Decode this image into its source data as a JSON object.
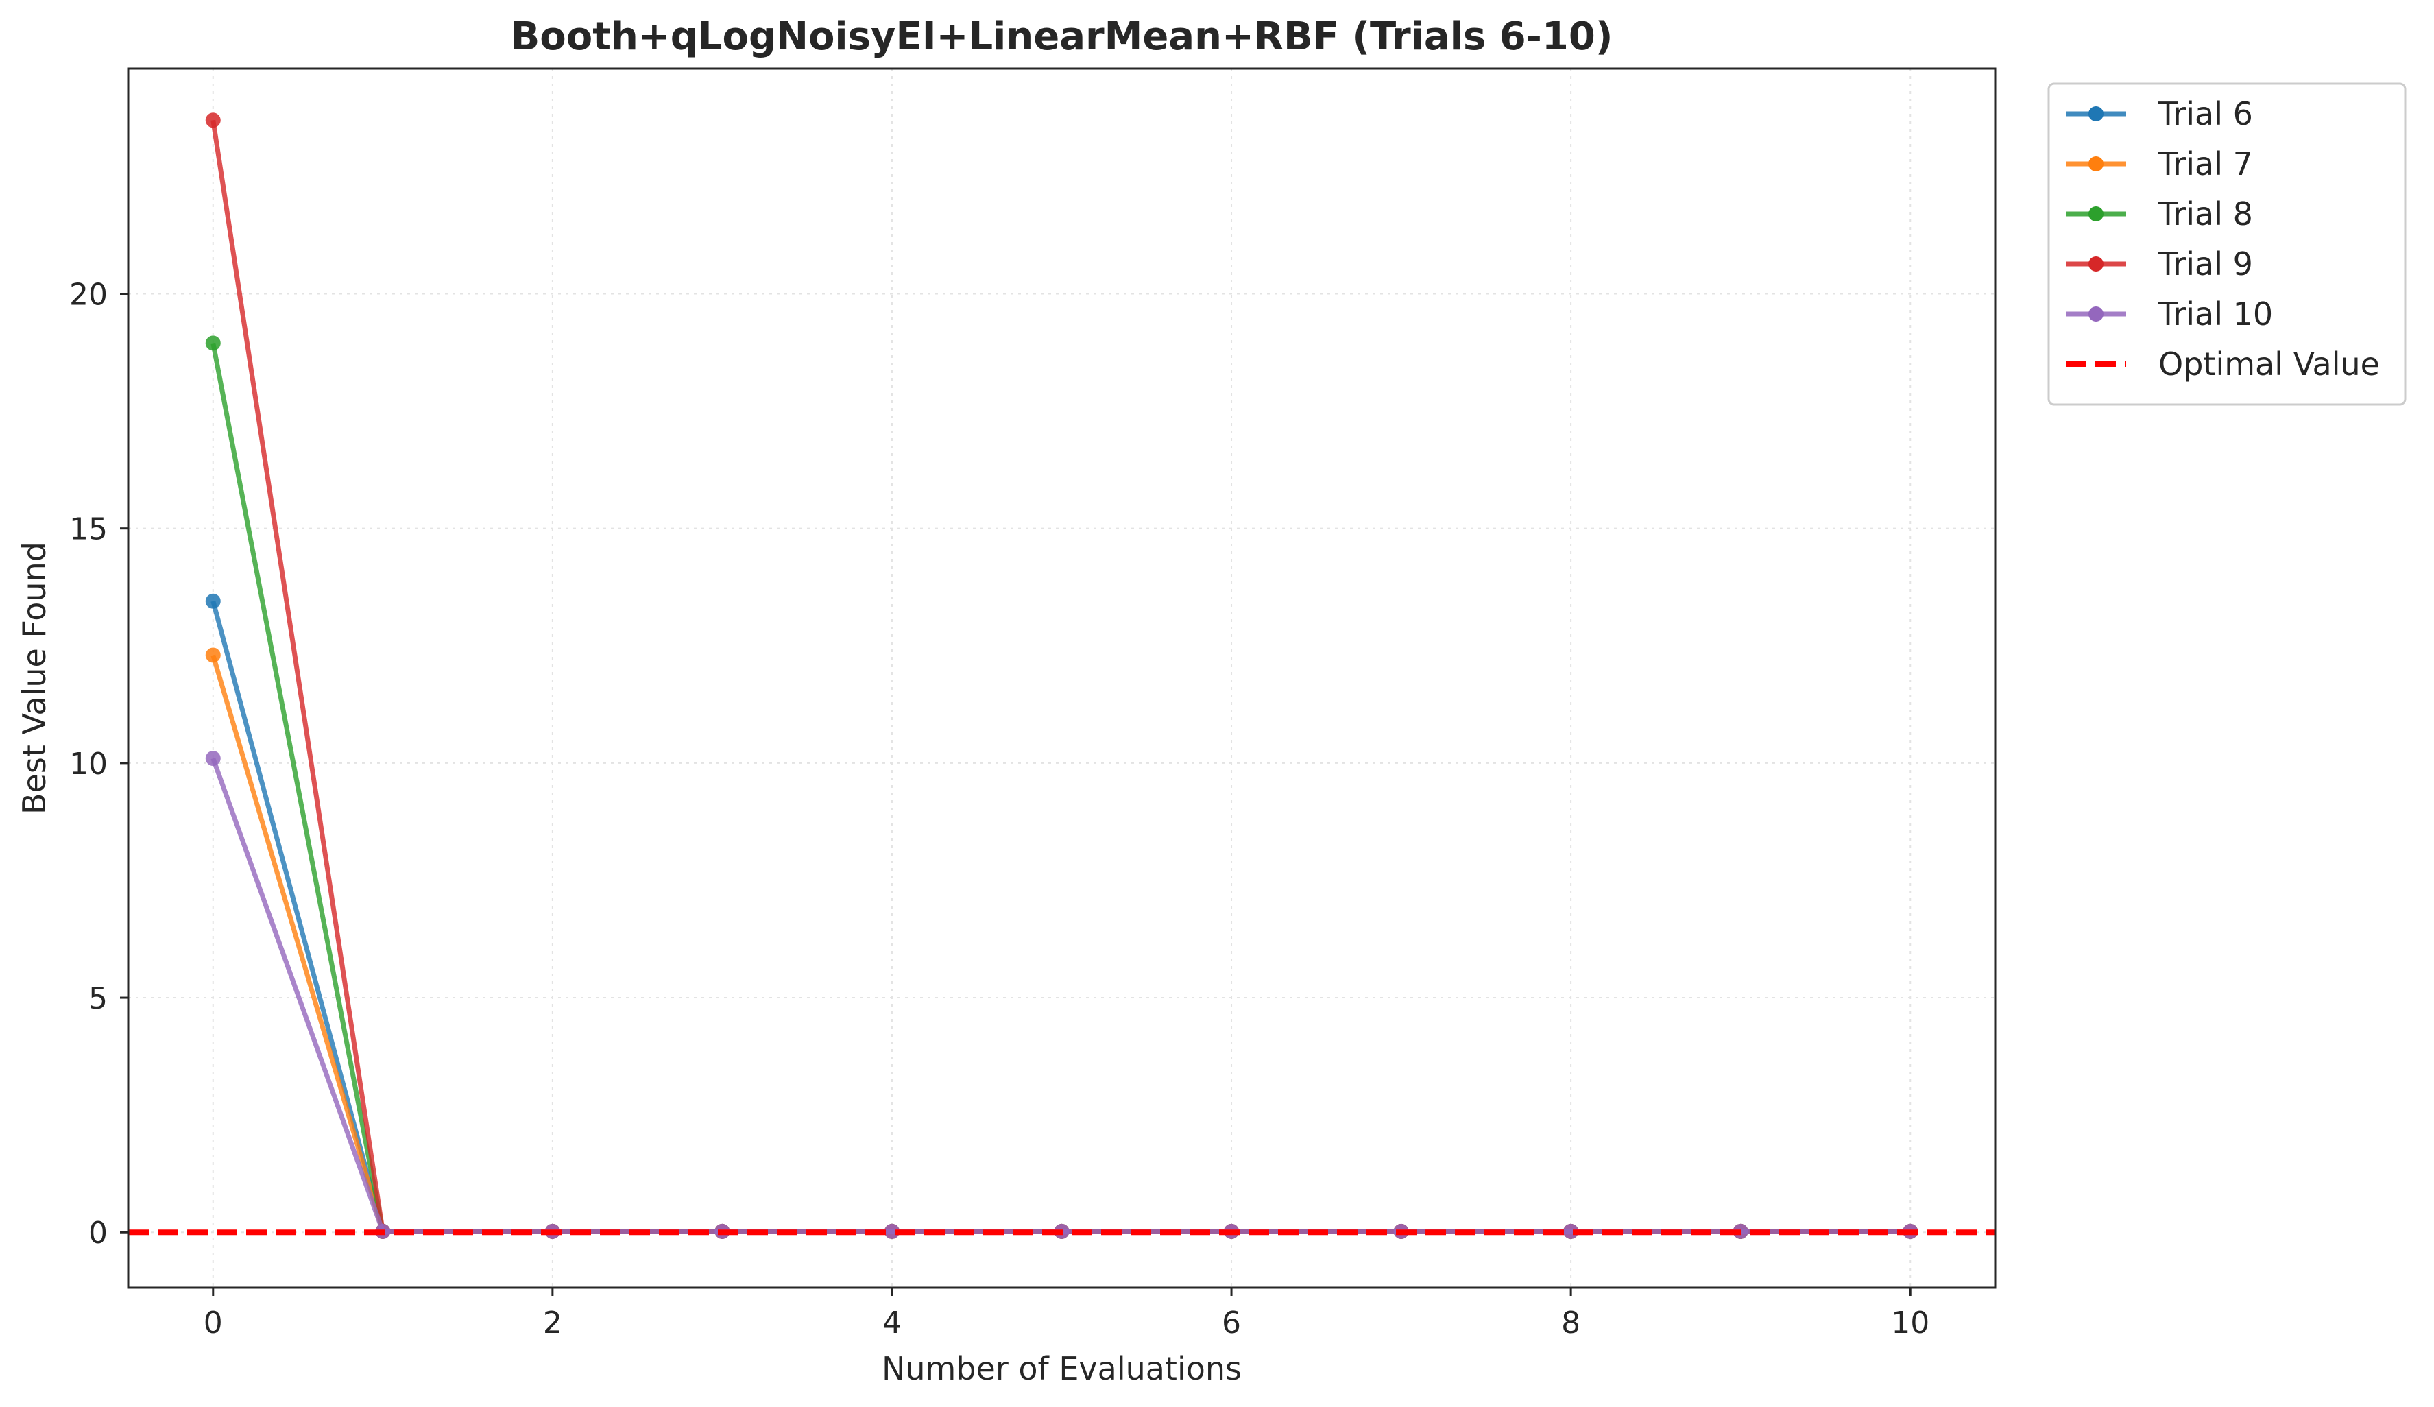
{
  "chart_data": {
    "type": "line",
    "title": "Booth+qLogNoisyEI+LinearMean+RBF (Trials 6-10)",
    "xlabel": "Number of Evaluations",
    "ylabel": "Best Value Found",
    "xlim": [
      -0.5,
      10.5
    ],
    "ylim": [
      -1.18,
      24.8
    ],
    "xticks": [
      0,
      2,
      4,
      6,
      8,
      10
    ],
    "yticks": [
      0,
      5,
      10,
      15,
      20
    ],
    "grid": true,
    "legend_position": "outside-top-right",
    "x": [
      0,
      1,
      2,
      3,
      4,
      5,
      6,
      7,
      8,
      9,
      10
    ],
    "series": [
      {
        "name": "Trial 6",
        "color": "#1f77b4",
        "values": [
          13.45,
          0.02,
          0.02,
          0.02,
          0.02,
          0.02,
          0.02,
          0.02,
          0.02,
          0.02,
          0.02
        ]
      },
      {
        "name": "Trial 7",
        "color": "#ff7f0e",
        "values": [
          12.3,
          0.02,
          0.02,
          0.02,
          0.02,
          0.02,
          0.02,
          0.02,
          0.02,
          0.02,
          0.02
        ]
      },
      {
        "name": "Trial 8",
        "color": "#2ca02c",
        "values": [
          18.95,
          0.02,
          0.02,
          0.02,
          0.02,
          0.02,
          0.02,
          0.02,
          0.02,
          0.02,
          0.02
        ]
      },
      {
        "name": "Trial 9",
        "color": "#d62728",
        "values": [
          23.7,
          0.02,
          0.02,
          0.02,
          0.02,
          0.02,
          0.02,
          0.02,
          0.02,
          0.02,
          0.02
        ]
      },
      {
        "name": "Trial 10",
        "color": "#9467bd",
        "values": [
          10.1,
          0.02,
          0.02,
          0.02,
          0.02,
          0.02,
          0.02,
          0.02,
          0.02,
          0.02,
          0.02
        ]
      }
    ],
    "reference_line": {
      "name": "Optimal Value",
      "value": 0,
      "color": "#ff0000",
      "style": "dashed"
    }
  }
}
